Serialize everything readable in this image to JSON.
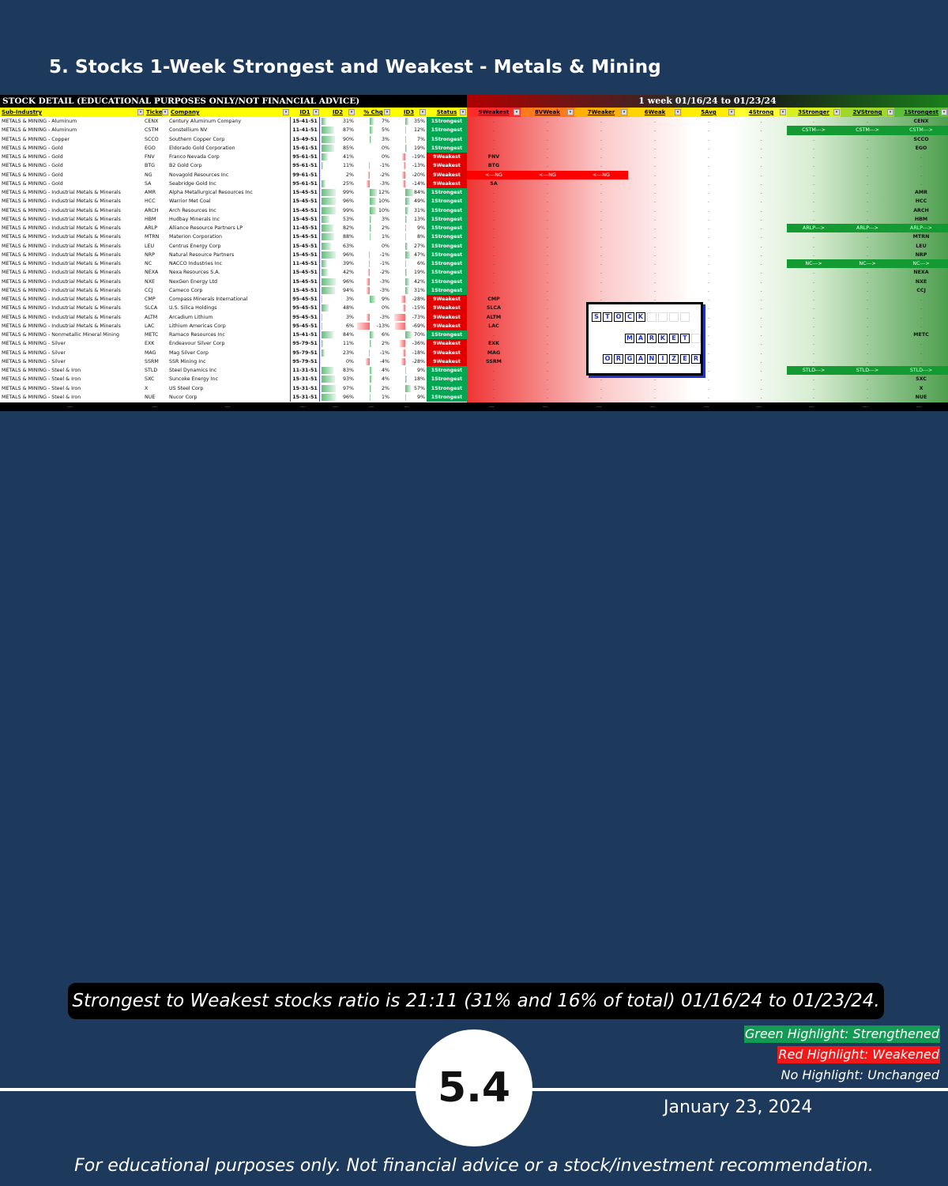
{
  "page_title": "5. Stocks 1-Week Strongest and Weakest - Metals & Mining",
  "sheet": {
    "banner_left": "STOCK DETAIL (EDUCATIONAL PURPOSES ONLY/NOT FINANCIAL ADVICE)",
    "banner_right": "1 week 01/16/24 to 01/23/24",
    "columns": [
      "Sub-Industry",
      "Ticker",
      "Company",
      "ID1",
      "ID2",
      "% Chg",
      "ID3",
      "Status",
      "9Weakest",
      "8VWeak",
      "7Weaker",
      "6Weak",
      "5Avg",
      "4Strong",
      "3Stronger",
      "2VStrong",
      "1Strongest"
    ],
    "rows": [
      {
        "sub": "METALS & MINING - Aluminum",
        "tk": "CENX",
        "co": "Century Aluminum Company",
        "id1": "15-41-51",
        "id2": "31%",
        "chg": "7%",
        "id3": "35%",
        "st": "1Strongest",
        "lv": "1"
      },
      {
        "sub": "METALS & MINING - Aluminum",
        "tk": "CSTM",
        "co": "Constellium NV",
        "id1": "11-41-51",
        "id2": "87%",
        "chg": "5%",
        "id3": "12%",
        "st": "1Strongest",
        "lv": "1",
        "arrow": "3"
      },
      {
        "sub": "METALS & MINING - Copper",
        "tk": "SCCO",
        "co": "Southern Copper Corp",
        "id1": "15-49-51",
        "id2": "90%",
        "chg": "3%",
        "id3": "7%",
        "st": "1Strongest",
        "lv": "1"
      },
      {
        "sub": "METALS & MINING - Gold",
        "tk": "EGO",
        "co": "Eldorado Gold Corporation",
        "id1": "15-61-51",
        "id2": "85%",
        "chg": "0%",
        "id3": "19%",
        "st": "1Strongest",
        "lv": "1"
      },
      {
        "sub": "METALS & MINING - Gold",
        "tk": "FNV",
        "co": "Franco Nevada Corp",
        "id1": "95-61-51",
        "id2": "41%",
        "chg": "0%",
        "id3": "-19%",
        "st": "9Weakest",
        "lv": "9"
      },
      {
        "sub": "METALS & MINING - Gold",
        "tk": "BTG",
        "co": "B2 Gold Corp",
        "id1": "95-61-51",
        "id2": "11%",
        "chg": "-1%",
        "id3": "-13%",
        "st": "9Weakest",
        "lv": "9"
      },
      {
        "sub": "METALS & MINING - Gold",
        "tk": "NG",
        "co": "Novagold Resources Inc",
        "id1": "99-61-51",
        "id2": "2%",
        "chg": "-2%",
        "id3": "-20%",
        "st": "9Weakest",
        "lv": "9",
        "arrowLeft": "3"
      },
      {
        "sub": "METALS & MINING - Gold",
        "tk": "SA",
        "co": "Seabridge Gold Inc",
        "id1": "95-61-51",
        "id2": "25%",
        "chg": "-3%",
        "id3": "-14%",
        "st": "9Weakest",
        "lv": "9"
      },
      {
        "sub": "METALS & MINING - Industrial Metals & Minerals",
        "tk": "AMR",
        "co": "Alpha Metallurgical Resources Inc",
        "id1": "15-45-51",
        "id2": "99%",
        "chg": "12%",
        "id3": "84%",
        "st": "1Strongest",
        "lv": "1"
      },
      {
        "sub": "METALS & MINING - Industrial Metals & Minerals",
        "tk": "HCC",
        "co": "Warrior Met Coal",
        "id1": "15-45-51",
        "id2": "96%",
        "chg": "10%",
        "id3": "49%",
        "st": "1Strongest",
        "lv": "1"
      },
      {
        "sub": "METALS & MINING - Industrial Metals & Minerals",
        "tk": "ARCH",
        "co": "Arch Resources Inc",
        "id1": "15-45-51",
        "id2": "99%",
        "chg": "10%",
        "id3": "31%",
        "st": "1Strongest",
        "lv": "1"
      },
      {
        "sub": "METALS & MINING - Industrial Metals & Minerals",
        "tk": "HBM",
        "co": "Hudbay Minerals Inc",
        "id1": "15-45-51",
        "id2": "53%",
        "chg": "3%",
        "id3": "13%",
        "st": "1Strongest",
        "lv": "1"
      },
      {
        "sub": "METALS & MINING - Industrial Metals & Minerals",
        "tk": "ARLP",
        "co": "Alliance Resource Partners LP",
        "id1": "11-45-51",
        "id2": "82%",
        "chg": "2%",
        "id3": "9%",
        "st": "1Strongest",
        "lv": "1",
        "arrow": "3"
      },
      {
        "sub": "METALS & MINING - Industrial Metals & Minerals",
        "tk": "MTRN",
        "co": "Materion Corporation",
        "id1": "15-45-51",
        "id2": "88%",
        "chg": "1%",
        "id3": "8%",
        "st": "1Strongest",
        "lv": "1"
      },
      {
        "sub": "METALS & MINING - Industrial Metals & Minerals",
        "tk": "LEU",
        "co": "Centrus Energy Corp",
        "id1": "15-45-51",
        "id2": "63%",
        "chg": "0%",
        "id3": "27%",
        "st": "1Strongest",
        "lv": "1"
      },
      {
        "sub": "METALS & MINING - Industrial Metals & Minerals",
        "tk": "NRP",
        "co": "Natural Resource Partners",
        "id1": "15-45-51",
        "id2": "96%",
        "chg": "-1%",
        "id3": "47%",
        "st": "1Strongest",
        "lv": "1"
      },
      {
        "sub": "METALS & MINING - Industrial Metals & Minerals",
        "tk": "NC",
        "co": "NACCO Industries Inc",
        "id1": "11-45-51",
        "id2": "39%",
        "chg": "-1%",
        "id3": "6%",
        "st": "1Strongest",
        "lv": "1",
        "arrow": "3"
      },
      {
        "sub": "METALS & MINING - Industrial Metals & Minerals",
        "tk": "NEXA",
        "co": "Nexa Resources S.A.",
        "id1": "15-45-51",
        "id2": "42%",
        "chg": "-2%",
        "id3": "19%",
        "st": "1Strongest",
        "lv": "1"
      },
      {
        "sub": "METALS & MINING - Industrial Metals & Minerals",
        "tk": "NXE",
        "co": "NexGen Energy Ltd",
        "id1": "15-45-51",
        "id2": "96%",
        "chg": "-3%",
        "id3": "42%",
        "st": "1Strongest",
        "lv": "1"
      },
      {
        "sub": "METALS & MINING - Industrial Metals & Minerals",
        "tk": "CCJ",
        "co": "Cameco Corp",
        "id1": "15-45-51",
        "id2": "94%",
        "chg": "-3%",
        "id3": "31%",
        "st": "1Strongest",
        "lv": "1"
      },
      {
        "sub": "METALS & MINING - Industrial Metals & Minerals",
        "tk": "CMP",
        "co": "Compass Minerals International",
        "id1": "95-45-51",
        "id2": "3%",
        "chg": "9%",
        "id3": "-28%",
        "st": "9Weakest",
        "lv": "9"
      },
      {
        "sub": "METALS & MINING - Industrial Metals & Minerals",
        "tk": "SLCA",
        "co": "U.S. Silica Holdings",
        "id1": "95-45-51",
        "id2": "48%",
        "chg": "0%",
        "id3": "-15%",
        "st": "9Weakest",
        "lv": "9"
      },
      {
        "sub": "METALS & MINING - Industrial Metals & Minerals",
        "tk": "ALTM",
        "co": "Arcadium Lithium",
        "id1": "95-45-51",
        "id2": "3%",
        "chg": "-3%",
        "id3": "-73%",
        "st": "9Weakest",
        "lv": "9"
      },
      {
        "sub": "METALS & MINING - Industrial Metals & Minerals",
        "tk": "LAC",
        "co": "Lithium Americas Corp",
        "id1": "95-45-51",
        "id2": "6%",
        "chg": "-13%",
        "id3": "-69%",
        "st": "9Weakest",
        "lv": "9"
      },
      {
        "sub": "METALS & MINING - Nonmetallic Mineral Mining",
        "tk": "METC",
        "co": "Ramaco Resources Inc",
        "id1": "15-41-51",
        "id2": "84%",
        "chg": "6%",
        "id3": "70%",
        "st": "1Strongest",
        "lv": "1"
      },
      {
        "sub": "METALS & MINING - Silver",
        "tk": "EXK",
        "co": "Endeavour Silver Corp",
        "id1": "95-79-51",
        "id2": "11%",
        "chg": "2%",
        "id3": "-36%",
        "st": "9Weakest",
        "lv": "9"
      },
      {
        "sub": "METALS & MINING - Silver",
        "tk": "MAG",
        "co": "Mag Silver Corp",
        "id1": "95-79-51",
        "id2": "23%",
        "chg": "-1%",
        "id3": "-18%",
        "st": "9Weakest",
        "lv": "9"
      },
      {
        "sub": "METALS & MINING - Silver",
        "tk": "SSRM",
        "co": "SSR Mining Inc",
        "id1": "95-79-51",
        "id2": "0%",
        "chg": "-4%",
        "id3": "-28%",
        "st": "9Weakest",
        "lv": "9"
      },
      {
        "sub": "METALS & MINING - Steel & Iron",
        "tk": "STLD",
        "co": "Steel Dynamics Inc",
        "id1": "11-31-51",
        "id2": "83%",
        "chg": "4%",
        "id3": "9%",
        "st": "1Strongest",
        "lv": "1",
        "arrow": "3"
      },
      {
        "sub": "METALS & MINING - Steel & Iron",
        "tk": "SXC",
        "co": "Suncoke Energy Inc",
        "id1": "15-31-51",
        "id2": "93%",
        "chg": "4%",
        "id3": "18%",
        "st": "1Strongest",
        "lv": "1"
      },
      {
        "sub": "METALS & MINING - Steel & Iron",
        "tk": "X",
        "co": "US Steel Corp",
        "id1": "15-31-51",
        "id2": "97%",
        "chg": "2%",
        "id3": "57%",
        "st": "1Strongest",
        "lv": "1"
      },
      {
        "sub": "METALS & MINING - Steel & Iron",
        "tk": "NUE",
        "co": "Nucor Corp",
        "id1": "15-31-51",
        "id2": "96%",
        "chg": "1%",
        "id3": "9%",
        "st": "1Strongest",
        "lv": "1"
      }
    ],
    "footer_marker": "---"
  },
  "logo": {
    "word1": [
      "S",
      "T",
      "O",
      "C",
      "K"
    ],
    "word2": [
      "M",
      "A",
      "R",
      "K",
      "E",
      "T"
    ],
    "word3": [
      "O",
      "R",
      "G",
      "A",
      "N",
      "I",
      "Z",
      "E",
      "R"
    ]
  },
  "ratio_text": "Strongest to Weakest stocks ratio is 21:11 (31% and 16% of total) 01/16/24 to 01/23/24.",
  "legend": {
    "green": "Green Highlight: Strengthened",
    "red": "Red Highlight: Weakened",
    "none": "No Highlight: Unchanged"
  },
  "page_number": "5.4",
  "date": "January 23, 2024",
  "disclaimer": "For educational purposes only. Not financial advice or a stock/investment recommendation.",
  "colors": {
    "background": "#1d3a5c",
    "strongest": "#00a651",
    "weakest": "#e00000",
    "header_yellow": "#ffff00"
  }
}
